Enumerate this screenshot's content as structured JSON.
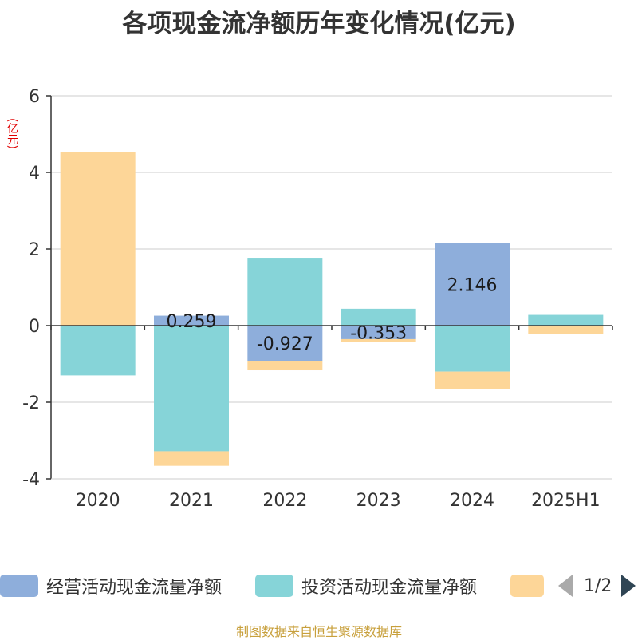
{
  "chart_data": {
    "type": "bar",
    "stacked": true,
    "title": "各项现金流净额历年变化情况(亿元)",
    "ylabel": "(亿元)",
    "ylim": [
      -4,
      6
    ],
    "yticks": [
      6,
      4,
      2,
      0,
      -2,
      -4
    ],
    "grid": true,
    "categories": [
      "2020",
      "2021",
      "2022",
      "2023",
      "2024",
      "2025H1"
    ],
    "series": [
      {
        "name": "经营活动现金流量净额",
        "color": "#8eaedb",
        "values": [
          -0.02,
          0.259,
          -0.927,
          -0.353,
          2.146,
          0.01
        ],
        "value_labels": [
          "",
          "0.259",
          "-0.927",
          "-0.353",
          "2.146",
          ""
        ]
      },
      {
        "name": "投资活动现金流量净额",
        "color": "#86d4d8",
        "values": [
          -1.28,
          -3.28,
          1.77,
          0.44,
          -1.2,
          0.27
        ]
      },
      {
        "name": "",
        "color": "#fdd698",
        "values": [
          4.54,
          -0.38,
          -0.24,
          -0.08,
          -0.45,
          -0.22
        ]
      }
    ],
    "legend_position": "bottom"
  },
  "legend": {
    "items": [
      {
        "label": "经营活动现金流量净额",
        "color": "#8eaedb"
      },
      {
        "label": "投资活动现金流量净额",
        "color": "#86d4d8"
      },
      {
        "label": "",
        "color": "#fdd698"
      }
    ],
    "page": "1/2",
    "prev_icon": "triangle-left-icon",
    "next_icon": "triangle-right-icon"
  },
  "source": "制图数据来自恒生聚源数据库"
}
